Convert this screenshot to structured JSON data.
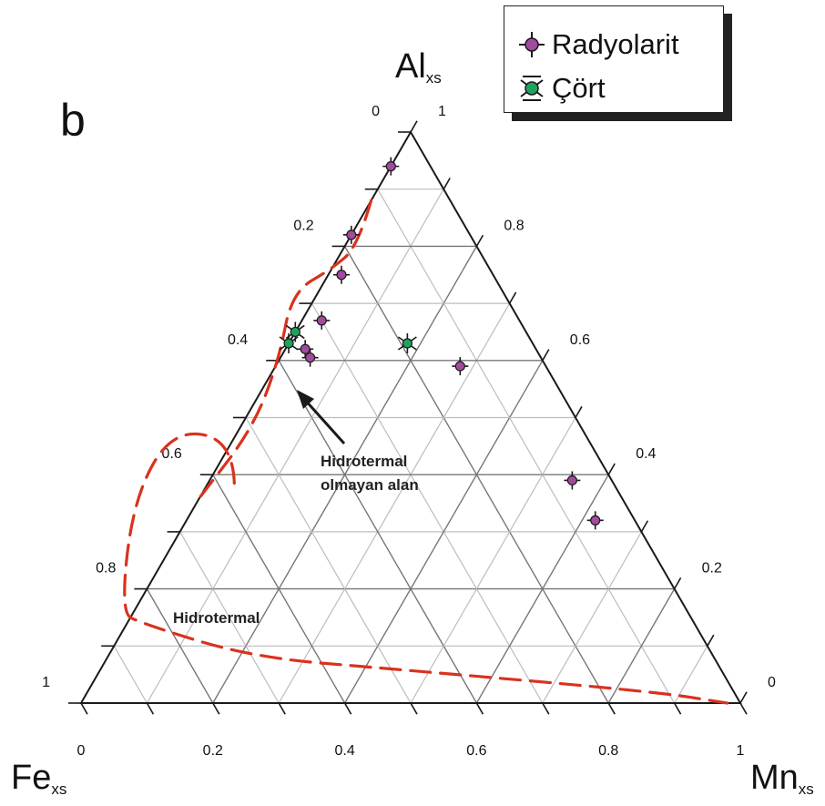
{
  "panel_label": "b",
  "apex_labels": {
    "top": {
      "main": "Al",
      "sub": "xs"
    },
    "left": {
      "main": "Fe",
      "sub": "xs"
    },
    "right": {
      "main": "Mn",
      "sub": "xs"
    }
  },
  "legend": {
    "items": [
      {
        "label": "Radyolarit",
        "color": "#a24a9e",
        "marker": "circle-plus"
      },
      {
        "label": "Çört",
        "color": "#1fa35c",
        "marker": "circle-star"
      }
    ]
  },
  "colors": {
    "grid_dark": "#777777",
    "grid_light": "#bdbdbd",
    "boundary": "#d9321e",
    "axis": "#1a1a1a"
  },
  "chart_data": {
    "type": "ternary-scatter",
    "apices": [
      "Al_xs",
      "Fe_xs",
      "Mn_xs"
    ],
    "bottom_axis": {
      "component": "Mn_xs",
      "ticks": [
        "0",
        "0.2",
        "0.4",
        "0.6",
        "0.8",
        "1"
      ]
    },
    "left_axis": {
      "component": "Fe_xs",
      "ticks": [
        "0",
        "0.2",
        "0.4",
        "0.6",
        "0.8",
        "1"
      ]
    },
    "right_axis": {
      "component": "Al_xs",
      "ticks": [
        "1",
        "0.8",
        "0.6",
        "0.4",
        "0.2",
        "0"
      ]
    },
    "grid_step": 0.1,
    "series": [
      {
        "name": "Radyolarit",
        "marker": "circle-plus",
        "points": [
          {
            "Fe": 0.06,
            "Mn": 0.0,
            "Al": 0.94
          },
          {
            "Fe": 0.18,
            "Mn": 0.0,
            "Al": 0.82
          },
          {
            "Fe": 0.23,
            "Mn": 0.02,
            "Al": 0.75
          },
          {
            "Fe": 0.3,
            "Mn": 0.03,
            "Al": 0.67
          },
          {
            "Fe": 0.35,
            "Mn": 0.03,
            "Al": 0.62
          },
          {
            "Fe": 0.35,
            "Mn": 0.045,
            "Al": 0.605
          },
          {
            "Fe": 0.13,
            "Mn": 0.28,
            "Al": 0.59
          },
          {
            "Fe": 0.06,
            "Mn": 0.55,
            "Al": 0.39
          },
          {
            "Fe": 0.06,
            "Mn": 0.62,
            "Al": 0.32
          }
        ]
      },
      {
        "name": "Çört",
        "marker": "circle-star",
        "points": [
          {
            "Fe": 0.37,
            "Mn": 0.0,
            "Al": 0.63
          },
          {
            "Fe": 0.35,
            "Mn": 0.0,
            "Al": 0.65
          },
          {
            "Fe": 0.19,
            "Mn": 0.18,
            "Al": 0.63
          }
        ]
      }
    ],
    "regions": [
      {
        "label": "Hidrotermal olmayan alan",
        "lines": [
          "Hidrotermal",
          "olmayan alan"
        ]
      },
      {
        "label": "Hidrotermal"
      }
    ],
    "boundary_curves": [
      {
        "name": "upper-bulge",
        "points": [
          {
            "Fe": 0.12,
            "Mn": 0.0,
            "Al": 0.88
          },
          {
            "Fe": 0.18,
            "Mn": 0.02,
            "Al": 0.8
          },
          {
            "Fe": 0.24,
            "Mn": 0.0,
            "Al": 0.76
          },
          {
            "Fe": 0.32,
            "Mn": -0.04,
            "Al": 0.72
          },
          {
            "Fe": 0.4,
            "Mn": 0.0,
            "Al": 0.6
          },
          {
            "Fe": 0.5,
            "Mn": 0.02,
            "Al": 0.48
          },
          {
            "Fe": 0.64,
            "Mn": 0.0,
            "Al": 0.36
          }
        ]
      },
      {
        "name": "lower-hook",
        "points": [
          {
            "Fe": 0.575,
            "Mn": 0.04,
            "Al": 0.385
          },
          {
            "Fe": 0.54,
            "Mn": 0.0,
            "Al": 0.46
          },
          {
            "Fe": 0.62,
            "Mn": -0.1,
            "Al": 0.48
          },
          {
            "Fe": 0.74,
            "Mn": -0.1,
            "Al": 0.36
          },
          {
            "Fe": 0.86,
            "Mn": -0.02,
            "Al": 0.16
          },
          {
            "Fe": 0.84,
            "Mn": 0.02,
            "Al": 0.14
          },
          {
            "Fe": 0.7,
            "Mn": 0.22,
            "Al": 0.08
          },
          {
            "Fe": 0.5,
            "Mn": 0.44,
            "Al": 0.06
          },
          {
            "Fe": 0.12,
            "Mn": 0.86,
            "Al": 0.02
          },
          {
            "Fe": 0.02,
            "Mn": 0.98,
            "Al": 0.0
          }
        ]
      }
    ]
  }
}
